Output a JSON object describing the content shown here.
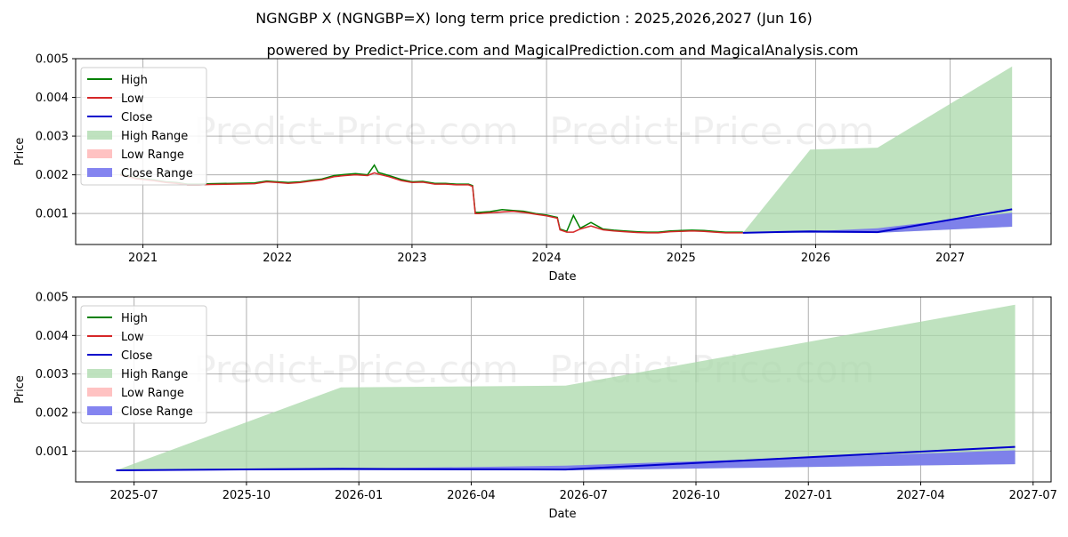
{
  "colors": {
    "high": "#008000",
    "low": "#d62728",
    "close": "#0000cc",
    "high_range": "#a9d8a9",
    "low_range": "#ffb3b3",
    "close_range": "#7777ee",
    "grid": "#b0b0b0"
  },
  "title_main": "NGNGBP X (NGNGBP=X) long term price prediction : 2025,2026,2027 (Jun 16)",
  "title_sub": "powered by Predict-Price.com and MagicalPrediction.com and MagicalAnalysis.com",
  "watermark": "Predict-Price.com",
  "chart_data": [
    {
      "type": "line",
      "title": "NGNGBP X (NGNGBP=X) long term price prediction : 2025,2026,2027 (Jun 16)",
      "xlabel": "Date",
      "ylabel": "Price",
      "xlim": [
        2020.5,
        2027.75
      ],
      "ylim": [
        0.0002,
        0.005
      ],
      "x_ticks": [
        2021,
        2022,
        2023,
        2024,
        2025,
        2026,
        2027
      ],
      "x_tick_labels": [
        "2021",
        "2022",
        "2023",
        "2024",
        "2025",
        "2026",
        "2027"
      ],
      "y_ticks": [
        0.001,
        0.002,
        0.003,
        0.004,
        0.005
      ],
      "y_tick_labels": [
        "0.001",
        "0.002",
        "0.003",
        "0.004",
        "0.005"
      ],
      "legend": [
        "High",
        "Low",
        "Close",
        "High Range",
        "Low Range",
        "Close Range"
      ],
      "legend_position": "top-left",
      "history": {
        "x": [
          2020.83,
          2020.95,
          2021.08,
          2021.17,
          2021.25,
          2021.33,
          2021.42,
          2021.5,
          2021.67,
          2021.83,
          2021.92,
          2022.0,
          2022.08,
          2022.17,
          2022.25,
          2022.33,
          2022.42,
          2022.5,
          2022.58,
          2022.67,
          2022.72,
          2022.75,
          2022.83,
          2022.92,
          2023.0,
          2023.08,
          2023.17,
          2023.25,
          2023.33,
          2023.42,
          2023.45,
          2023.47,
          2023.5,
          2023.58,
          2023.67,
          2023.75,
          2023.83,
          2023.92,
          2024.0,
          2024.08,
          2024.1,
          2024.15,
          2024.2,
          2024.25,
          2024.33,
          2024.42,
          2024.5,
          2024.58,
          2024.67,
          2024.75,
          2024.83,
          2024.92,
          2025.0,
          2025.08,
          2025.17,
          2025.25,
          2025.33,
          2025.42,
          2025.46
        ],
        "low": [
          0.002,
          0.0019,
          0.00185,
          0.0018,
          0.00178,
          0.00174,
          0.00174,
          0.00175,
          0.00176,
          0.00177,
          0.00182,
          0.0018,
          0.00178,
          0.0018,
          0.00184,
          0.00187,
          0.00195,
          0.00198,
          0.002,
          0.00198,
          0.00205,
          0.00202,
          0.00195,
          0.00185,
          0.0018,
          0.00181,
          0.00176,
          0.00176,
          0.00174,
          0.00174,
          0.0017,
          0.001,
          0.001,
          0.00102,
          0.00104,
          0.00106,
          0.00103,
          0.00098,
          0.00094,
          0.00088,
          0.00058,
          0.00052,
          0.00052,
          0.0006,
          0.00068,
          0.00058,
          0.00055,
          0.00053,
          0.00051,
          0.0005,
          0.0005,
          0.00053,
          0.00054,
          0.00055,
          0.00054,
          0.00052,
          0.0005,
          0.0005,
          0.0005
        ],
        "high": [
          0.00202,
          0.00192,
          0.00187,
          0.00182,
          0.0018,
          0.00176,
          0.00176,
          0.00177,
          0.00178,
          0.00179,
          0.00184,
          0.00182,
          0.0018,
          0.00182,
          0.00186,
          0.00189,
          0.00198,
          0.00201,
          0.00203,
          0.002,
          0.00225,
          0.00206,
          0.00198,
          0.00188,
          0.00182,
          0.00183,
          0.00178,
          0.00178,
          0.00176,
          0.00176,
          0.00172,
          0.00103,
          0.00103,
          0.00105,
          0.0011,
          0.00108,
          0.00106,
          0.001,
          0.00096,
          0.0009,
          0.0006,
          0.00054,
          0.00095,
          0.00062,
          0.00077,
          0.0006,
          0.00057,
          0.00055,
          0.00053,
          0.00052,
          0.00052,
          0.00055,
          0.00056,
          0.00057,
          0.00056,
          0.00054,
          0.00052,
          0.00052,
          0.00052
        ]
      },
      "forecast": {
        "x": [
          2025.46,
          2025.96,
          2026.46,
          2027.46
        ],
        "close": [
          0.0005,
          0.00054,
          0.00052,
          0.00111
        ],
        "high_range_upper": [
          0.0005,
          0.00265,
          0.0027,
          0.0048
        ],
        "low_range_lower": [
          0.0005,
          0.0005,
          0.0005,
          0.00066
        ],
        "close_range_upper": [
          0.0005,
          0.00054,
          0.00062,
          0.00102
        ],
        "close_range_lower": [
          0.0005,
          0.0005,
          0.0005,
          0.00066
        ]
      }
    },
    {
      "type": "line",
      "xlabel": "Date",
      "ylabel": "Price",
      "xlim": [
        2025.37,
        2027.54
      ],
      "ylim": [
        0.0002,
        0.005
      ],
      "x_ticks": [
        2025.5,
        2025.75,
        2026.0,
        2026.25,
        2026.5,
        2026.75,
        2027.0,
        2027.25,
        2027.5
      ],
      "x_tick_labels": [
        "2025-07",
        "2025-10",
        "2026-01",
        "2026-04",
        "2026-07",
        "2026-10",
        "2027-01",
        "2027-04",
        "2027-07"
      ],
      "y_ticks": [
        0.001,
        0.002,
        0.003,
        0.004,
        0.005
      ],
      "y_tick_labels": [
        "0.001",
        "0.002",
        "0.003",
        "0.004",
        "0.005"
      ],
      "legend": [
        "High",
        "Low",
        "Close",
        "High Range",
        "Low Range",
        "Close Range"
      ],
      "legend_position": "top-left",
      "forecast": {
        "x": [
          2025.46,
          2025.96,
          2026.46,
          2027.46
        ],
        "close": [
          0.0005,
          0.00054,
          0.00052,
          0.00111
        ],
        "high_range_upper": [
          0.0005,
          0.00265,
          0.0027,
          0.0048
        ],
        "low_range_lower": [
          0.0005,
          0.0005,
          0.0005,
          0.00066
        ],
        "close_range_upper": [
          0.0005,
          0.00054,
          0.00062,
          0.00102
        ],
        "close_range_lower": [
          0.0005,
          0.0005,
          0.0005,
          0.00066
        ]
      }
    }
  ]
}
